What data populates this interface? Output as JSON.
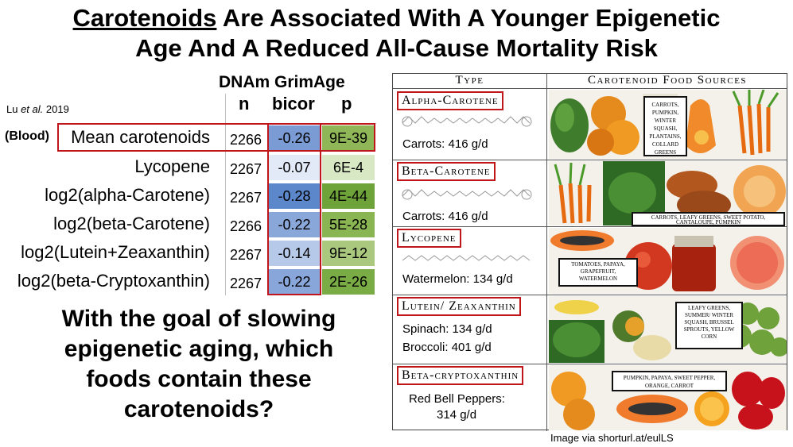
{
  "title": {
    "underlined": "Carotenoids",
    "rest_line1": " Are Associated With A Younger Epigenetic",
    "line2": "Age And A Reduced All-Cause Mortality Risk"
  },
  "table": {
    "subhead": "DNAm GrimAge",
    "citation_author": "Lu ",
    "citation_etal": "et al.",
    "citation_year": " 2019",
    "col_n": "n",
    "col_bicor": "bicor",
    "col_p": "p",
    "blood_label": "(Blood)",
    "rows": [
      {
        "name": "Mean carotenoids",
        "n": "2266",
        "bicor": "-0.26",
        "p": "9E-39"
      },
      {
        "name": "Lycopene",
        "n": "2267",
        "bicor": "-0.07",
        "p": "6E-4"
      },
      {
        "name": "log2(alpha-Carotene)",
        "n": "2267",
        "bicor": "-0.28",
        "p": "4E-44"
      },
      {
        "name": "log2(beta-Carotene)",
        "n": "2266",
        "bicor": "-0.22",
        "p": "5E-28"
      },
      {
        "name": "log2(Lutein+Zeaxanthin)",
        "n": "2267",
        "bicor": "-0.14",
        "p": "9E-12"
      },
      {
        "name": "log2(beta-Cryptoxanthin)",
        "n": "2267",
        "bicor": "-0.22",
        "p": "2E-26"
      }
    ]
  },
  "question": {
    "line1": "With the goal of slowing",
    "line2": "epigenetic aging, which",
    "line3": "foods contain these",
    "line4": "carotenoids?"
  },
  "panel": {
    "header_type": "Type",
    "header_sources": "Carotenoid Food Sources",
    "rows": [
      {
        "type": "Alpha-Carotene",
        "amount1": "Carrots: 416 g/d",
        "amount2": "",
        "label": "Carrots, Pumpkin, Winter Squash, Plantains, Collard Greens"
      },
      {
        "type": "Beta-Carotene",
        "amount1": "Carrots: 416 g/d",
        "amount2": "",
        "label": "Carrots, Leafy Greens, Sweet Potato, Cantaloupe, Pumpkin"
      },
      {
        "type": "Lycopene",
        "amount1": "Watermelon: 134 g/d",
        "amount2": "",
        "label": "Tomatoes, Papaya, Grapefruit, Watermelon"
      },
      {
        "type": "Lutein/ Zeaxanthin",
        "amount1": "Spinach: 134 g/d",
        "amount2": "Broccoli: 401 g/d",
        "label": "Leafy Greens, Summer/ Winter Squash, Brussel Sprouts, Yellow Corn"
      },
      {
        "type": "Beta-cryptoxanthin",
        "amount1": "Red Bell Peppers:",
        "amount2": "314 g/d",
        "label": "Pumpkin, Papaya, Sweet Pepper, Orange, Carrot"
      }
    ]
  },
  "credit": "Image via shorturl.at/eulLS",
  "colors": {
    "red_box": "#c0151b",
    "bicor_strong": "#5b86c9",
    "bicor_mid": "#8aa9da",
    "bicor_weak": "#dfe8f5",
    "p_strong": "#7aaa45",
    "p_mid": "#a9c97a",
    "p_weak": "#dbe8c8"
  }
}
